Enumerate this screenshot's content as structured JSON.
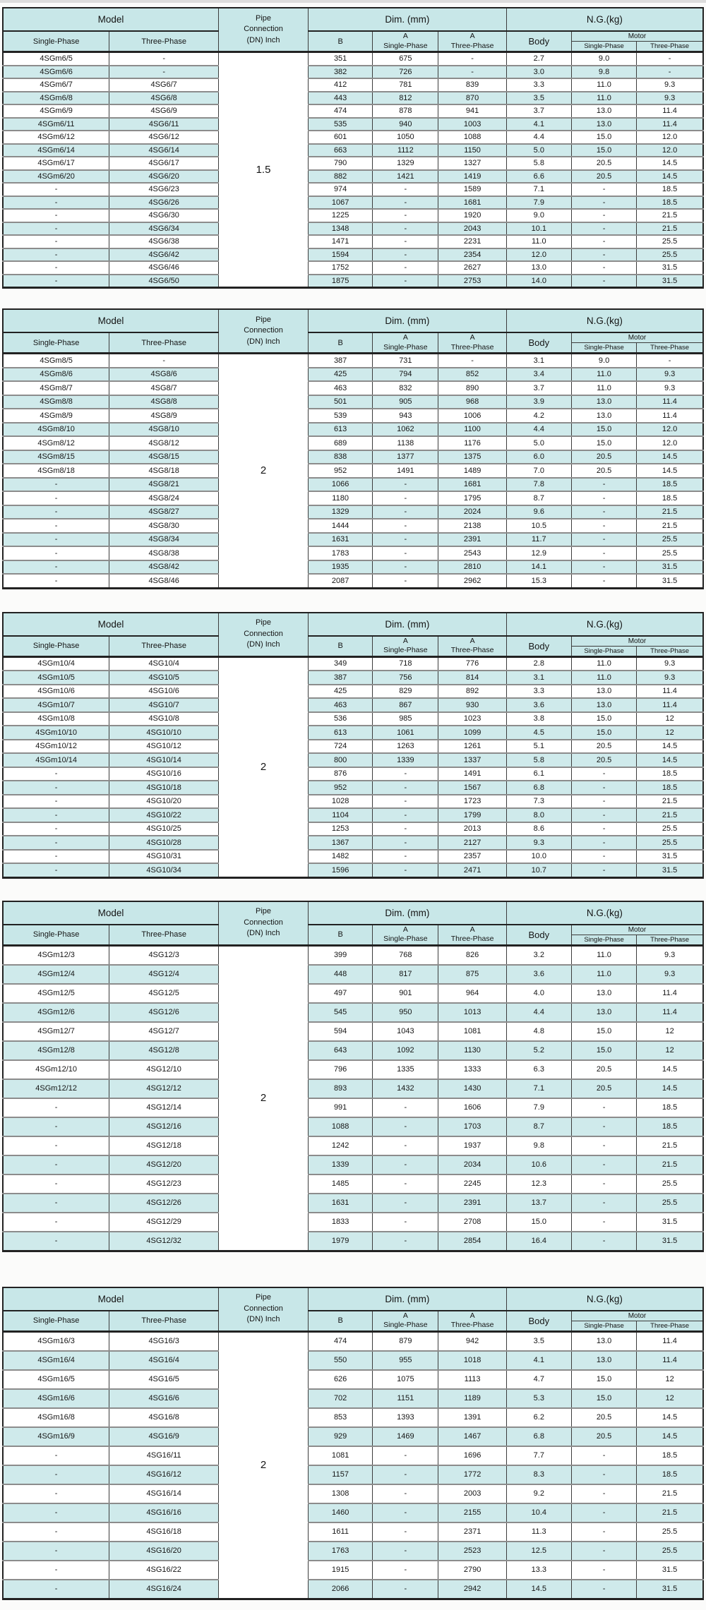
{
  "header_labels": {
    "model": "Model",
    "pipe_lines": [
      "Pipe",
      "Connection",
      "(DN) Inch"
    ],
    "dim": "Dim. (mm)",
    "ng": "N.G.(kg)",
    "single_phase": "Single-Phase",
    "three_phase": "Three-Phase",
    "b": "B",
    "a": "A",
    "body": "Body",
    "motor": "Motor"
  },
  "tables": [
    {
      "pipe_connection": "1.5",
      "rows": [
        [
          "4SGm6/5",
          "-",
          "351",
          "675",
          "-",
          "2.7",
          "9.0",
          "-"
        ],
        [
          "4SGm6/6",
          "-",
          "382",
          "726",
          "-",
          "3.0",
          "9.8",
          "-"
        ],
        [
          "4SGm6/7",
          "4SG6/7",
          "412",
          "781",
          "839",
          "3.3",
          "11.0",
          "9.3"
        ],
        [
          "4SGm6/8",
          "4SG6/8",
          "443",
          "812",
          "870",
          "3.5",
          "11.0",
          "9.3"
        ],
        [
          "4SGm6/9",
          "4SG6/9",
          "474",
          "878",
          "941",
          "3.7",
          "13.0",
          "11.4"
        ],
        [
          "4SGm6/11",
          "4SG6/11",
          "535",
          "940",
          "1003",
          "4.1",
          "13.0",
          "11.4"
        ],
        [
          "4SGm6/12",
          "4SG6/12",
          "601",
          "1050",
          "1088",
          "4.4",
          "15.0",
          "12.0"
        ],
        [
          "4SGm6/14",
          "4SG6/14",
          "663",
          "1112",
          "1150",
          "5.0",
          "15.0",
          "12.0"
        ],
        [
          "4SGm6/17",
          "4SG6/17",
          "790",
          "1329",
          "1327",
          "5.8",
          "20.5",
          "14.5"
        ],
        [
          "4SGm6/20",
          "4SG6/20",
          "882",
          "1421",
          "1419",
          "6.6",
          "20.5",
          "14.5"
        ],
        [
          "-",
          "4SG6/23",
          "974",
          "-",
          "1589",
          "7.1",
          "-",
          "18.5"
        ],
        [
          "-",
          "4SG6/26",
          "1067",
          "-",
          "1681",
          "7.9",
          "-",
          "18.5"
        ],
        [
          "-",
          "4SG6/30",
          "1225",
          "-",
          "1920",
          "9.0",
          "-",
          "21.5"
        ],
        [
          "-",
          "4SG6/34",
          "1348",
          "-",
          "2043",
          "10.1",
          "-",
          "21.5"
        ],
        [
          "-",
          "4SG6/38",
          "1471",
          "-",
          "2231",
          "11.0",
          "-",
          "25.5"
        ],
        [
          "-",
          "4SG6/42",
          "1594",
          "-",
          "2354",
          "12.0",
          "-",
          "25.5"
        ],
        [
          "-",
          "4SG6/46",
          "1752",
          "-",
          "2627",
          "13.0",
          "-",
          "31.5"
        ],
        [
          "-",
          "4SG6/50",
          "1875",
          "-",
          "2753",
          "14.0",
          "-",
          "31.5"
        ]
      ]
    },
    {
      "pipe_connection": "2",
      "rows": [
        [
          "4SGm8/5",
          "-",
          "387",
          "731",
          "-",
          "3.1",
          "9.0",
          "-"
        ],
        [
          "4SGm8/6",
          "4SG8/6",
          "425",
          "794",
          "852",
          "3.4",
          "11.0",
          "9.3"
        ],
        [
          "4SGm8/7",
          "4SG8/7",
          "463",
          "832",
          "890",
          "3.7",
          "11.0",
          "9.3"
        ],
        [
          "4SGm8/8",
          "4SG8/8",
          "501",
          "905",
          "968",
          "3.9",
          "13.0",
          "11.4"
        ],
        [
          "4SGm8/9",
          "4SG8/9",
          "539",
          "943",
          "1006",
          "4.2",
          "13.0",
          "11.4"
        ],
        [
          "4SGm8/10",
          "4SG8/10",
          "613",
          "1062",
          "1100",
          "4.4",
          "15.0",
          "12.0"
        ],
        [
          "4SGm8/12",
          "4SG8/12",
          "689",
          "1138",
          "1176",
          "5.0",
          "15.0",
          "12.0"
        ],
        [
          "4SGm8/15",
          "4SG8/15",
          "838",
          "1377",
          "1375",
          "6.0",
          "20.5",
          "14.5"
        ],
        [
          "4SGm8/18",
          "4SG8/18",
          "952",
          "1491",
          "1489",
          "7.0",
          "20.5",
          "14.5"
        ],
        [
          "-",
          "4SG8/21",
          "1066",
          "-",
          "1681",
          "7.8",
          "-",
          "18.5"
        ],
        [
          "-",
          "4SG8/24",
          "1180",
          "-",
          "1795",
          "8.7",
          "-",
          "18.5"
        ],
        [
          "-",
          "4SG8/27",
          "1329",
          "-",
          "2024",
          "9.6",
          "-",
          "21.5"
        ],
        [
          "-",
          "4SG8/30",
          "1444",
          "-",
          "2138",
          "10.5",
          "-",
          "21.5"
        ],
        [
          "-",
          "4SG8/34",
          "1631",
          "-",
          "2391",
          "11.7",
          "-",
          "25.5"
        ],
        [
          "-",
          "4SG8/38",
          "1783",
          "-",
          "2543",
          "12.9",
          "-",
          "25.5"
        ],
        [
          "-",
          "4SG8/42",
          "1935",
          "-",
          "2810",
          "14.1",
          "-",
          "31.5"
        ],
        [
          "-",
          "4SG8/46",
          "2087",
          "-",
          "2962",
          "15.3",
          "-",
          "31.5"
        ]
      ]
    },
    {
      "pipe_connection": "2",
      "rows": [
        [
          "4SGm10/4",
          "4SG10/4",
          "349",
          "718",
          "776",
          "2.8",
          "11.0",
          "9.3"
        ],
        [
          "4SGm10/5",
          "4SG10/5",
          "387",
          "756",
          "814",
          "3.1",
          "11.0",
          "9.3"
        ],
        [
          "4SGm10/6",
          "4SG10/6",
          "425",
          "829",
          "892",
          "3.3",
          "13.0",
          "11.4"
        ],
        [
          "4SGm10/7",
          "4SG10/7",
          "463",
          "867",
          "930",
          "3.6",
          "13.0",
          "11.4"
        ],
        [
          "4SGm10/8",
          "4SG10/8",
          "536",
          "985",
          "1023",
          "3.8",
          "15.0",
          "12"
        ],
        [
          "4SGm10/10",
          "4SG10/10",
          "613",
          "1061",
          "1099",
          "4.5",
          "15.0",
          "12"
        ],
        [
          "4SGm10/12",
          "4SG10/12",
          "724",
          "1263",
          "1261",
          "5.1",
          "20.5",
          "14.5"
        ],
        [
          "4SGm10/14",
          "4SG10/14",
          "800",
          "1339",
          "1337",
          "5.8",
          "20.5",
          "14.5"
        ],
        [
          "-",
          "4SG10/16",
          "876",
          "-",
          "1491",
          "6.1",
          "-",
          "18.5"
        ],
        [
          "-",
          "4SG10/18",
          "952",
          "-",
          "1567",
          "6.8",
          "-",
          "18.5"
        ],
        [
          "-",
          "4SG10/20",
          "1028",
          "-",
          "1723",
          "7.3",
          "-",
          "21.5"
        ],
        [
          "-",
          "4SG10/22",
          "1104",
          "-",
          "1799",
          "8.0",
          "-",
          "21.5"
        ],
        [
          "-",
          "4SG10/25",
          "1253",
          "-",
          "2013",
          "8.6",
          "-",
          "25.5"
        ],
        [
          "-",
          "4SG10/28",
          "1367",
          "-",
          "2127",
          "9.3",
          "-",
          "25.5"
        ],
        [
          "-",
          "4SG10/31",
          "1482",
          "-",
          "2357",
          "10.0",
          "-",
          "31.5"
        ],
        [
          "-",
          "4SG10/34",
          "1596",
          "-",
          "2471",
          "10.7",
          "-",
          "31.5"
        ]
      ]
    },
    {
      "pipe_connection": "2",
      "rows": [
        [
          "4SGm12/3",
          "4SG12/3",
          "399",
          "768",
          "826",
          "3.2",
          "11.0",
          "9.3"
        ],
        [
          "4SGm12/4",
          "4SG12/4",
          "448",
          "817",
          "875",
          "3.6",
          "11.0",
          "9.3"
        ],
        [
          "4SGm12/5",
          "4SG12/5",
          "497",
          "901",
          "964",
          "4.0",
          "13.0",
          "11.4"
        ],
        [
          "4SGm12/6",
          "4SG12/6",
          "545",
          "950",
          "1013",
          "4.4",
          "13.0",
          "11.4"
        ],
        [
          "4SGm12/7",
          "4SG12/7",
          "594",
          "1043",
          "1081",
          "4.8",
          "15.0",
          "12"
        ],
        [
          "4SGm12/8",
          "4SG12/8",
          "643",
          "1092",
          "1130",
          "5.2",
          "15.0",
          "12"
        ],
        [
          "4SGm12/10",
          "4SG12/10",
          "796",
          "1335",
          "1333",
          "6.3",
          "20.5",
          "14.5"
        ],
        [
          "4SGm12/12",
          "4SG12/12",
          "893",
          "1432",
          "1430",
          "7.1",
          "20.5",
          "14.5"
        ],
        [
          "-",
          "4SG12/14",
          "991",
          "-",
          "1606",
          "7.9",
          "-",
          "18.5"
        ],
        [
          "-",
          "4SG12/16",
          "1088",
          "-",
          "1703",
          "8.7",
          "-",
          "18.5"
        ],
        [
          "-",
          "4SG12/18",
          "1242",
          "-",
          "1937",
          "9.8",
          "-",
          "21.5"
        ],
        [
          "-",
          "4SG12/20",
          "1339",
          "-",
          "2034",
          "10.6",
          "-",
          "21.5"
        ],
        [
          "-",
          "4SG12/23",
          "1485",
          "-",
          "2245",
          "12.3",
          "-",
          "25.5"
        ],
        [
          "-",
          "4SG12/26",
          "1631",
          "-",
          "2391",
          "13.7",
          "-",
          "25.5"
        ],
        [
          "-",
          "4SG12/29",
          "1833",
          "-",
          "2708",
          "15.0",
          "-",
          "31.5"
        ],
        [
          "-",
          "4SG12/32",
          "1979",
          "-",
          "2854",
          "16.4",
          "-",
          "31.5"
        ]
      ]
    },
    {
      "pipe_connection": "2",
      "rows": [
        [
          "4SGm16/3",
          "4SG16/3",
          "474",
          "879",
          "942",
          "3.5",
          "13.0",
          "11.4"
        ],
        [
          "4SGm16/4",
          "4SG16/4",
          "550",
          "955",
          "1018",
          "4.1",
          "13.0",
          "11.4"
        ],
        [
          "4SGm16/5",
          "4SG16/5",
          "626",
          "1075",
          "1113",
          "4.7",
          "15.0",
          "12"
        ],
        [
          "4SGm16/6",
          "4SG16/6",
          "702",
          "1151",
          "1189",
          "5.3",
          "15.0",
          "12"
        ],
        [
          "4SGm16/8",
          "4SG16/8",
          "853",
          "1393",
          "1391",
          "6.2",
          "20.5",
          "14.5"
        ],
        [
          "4SGm16/9",
          "4SG16/9",
          "929",
          "1469",
          "1467",
          "6.8",
          "20.5",
          "14.5"
        ],
        [
          "-",
          "4SG16/11",
          "1081",
          "-",
          "1696",
          "7.7",
          "-",
          "18.5"
        ],
        [
          "-",
          "4SG16/12",
          "1157",
          "-",
          "1772",
          "8.3",
          "-",
          "18.5"
        ],
        [
          "-",
          "4SG16/14",
          "1308",
          "-",
          "2003",
          "9.2",
          "-",
          "21.5"
        ],
        [
          "-",
          "4SG16/16",
          "1460",
          "-",
          "2155",
          "10.4",
          "-",
          "21.5"
        ],
        [
          "-",
          "4SG16/18",
          "1611",
          "-",
          "2371",
          "11.3",
          "-",
          "25.5"
        ],
        [
          "-",
          "4SG16/20",
          "1763",
          "-",
          "2523",
          "12.5",
          "-",
          "25.5"
        ],
        [
          "-",
          "4SG16/22",
          "1915",
          "-",
          "2790",
          "13.3",
          "-",
          "31.5"
        ],
        [
          "-",
          "4SG16/24",
          "2066",
          "-",
          "2942",
          "14.5",
          "-",
          "31.5"
        ]
      ]
    }
  ]
}
